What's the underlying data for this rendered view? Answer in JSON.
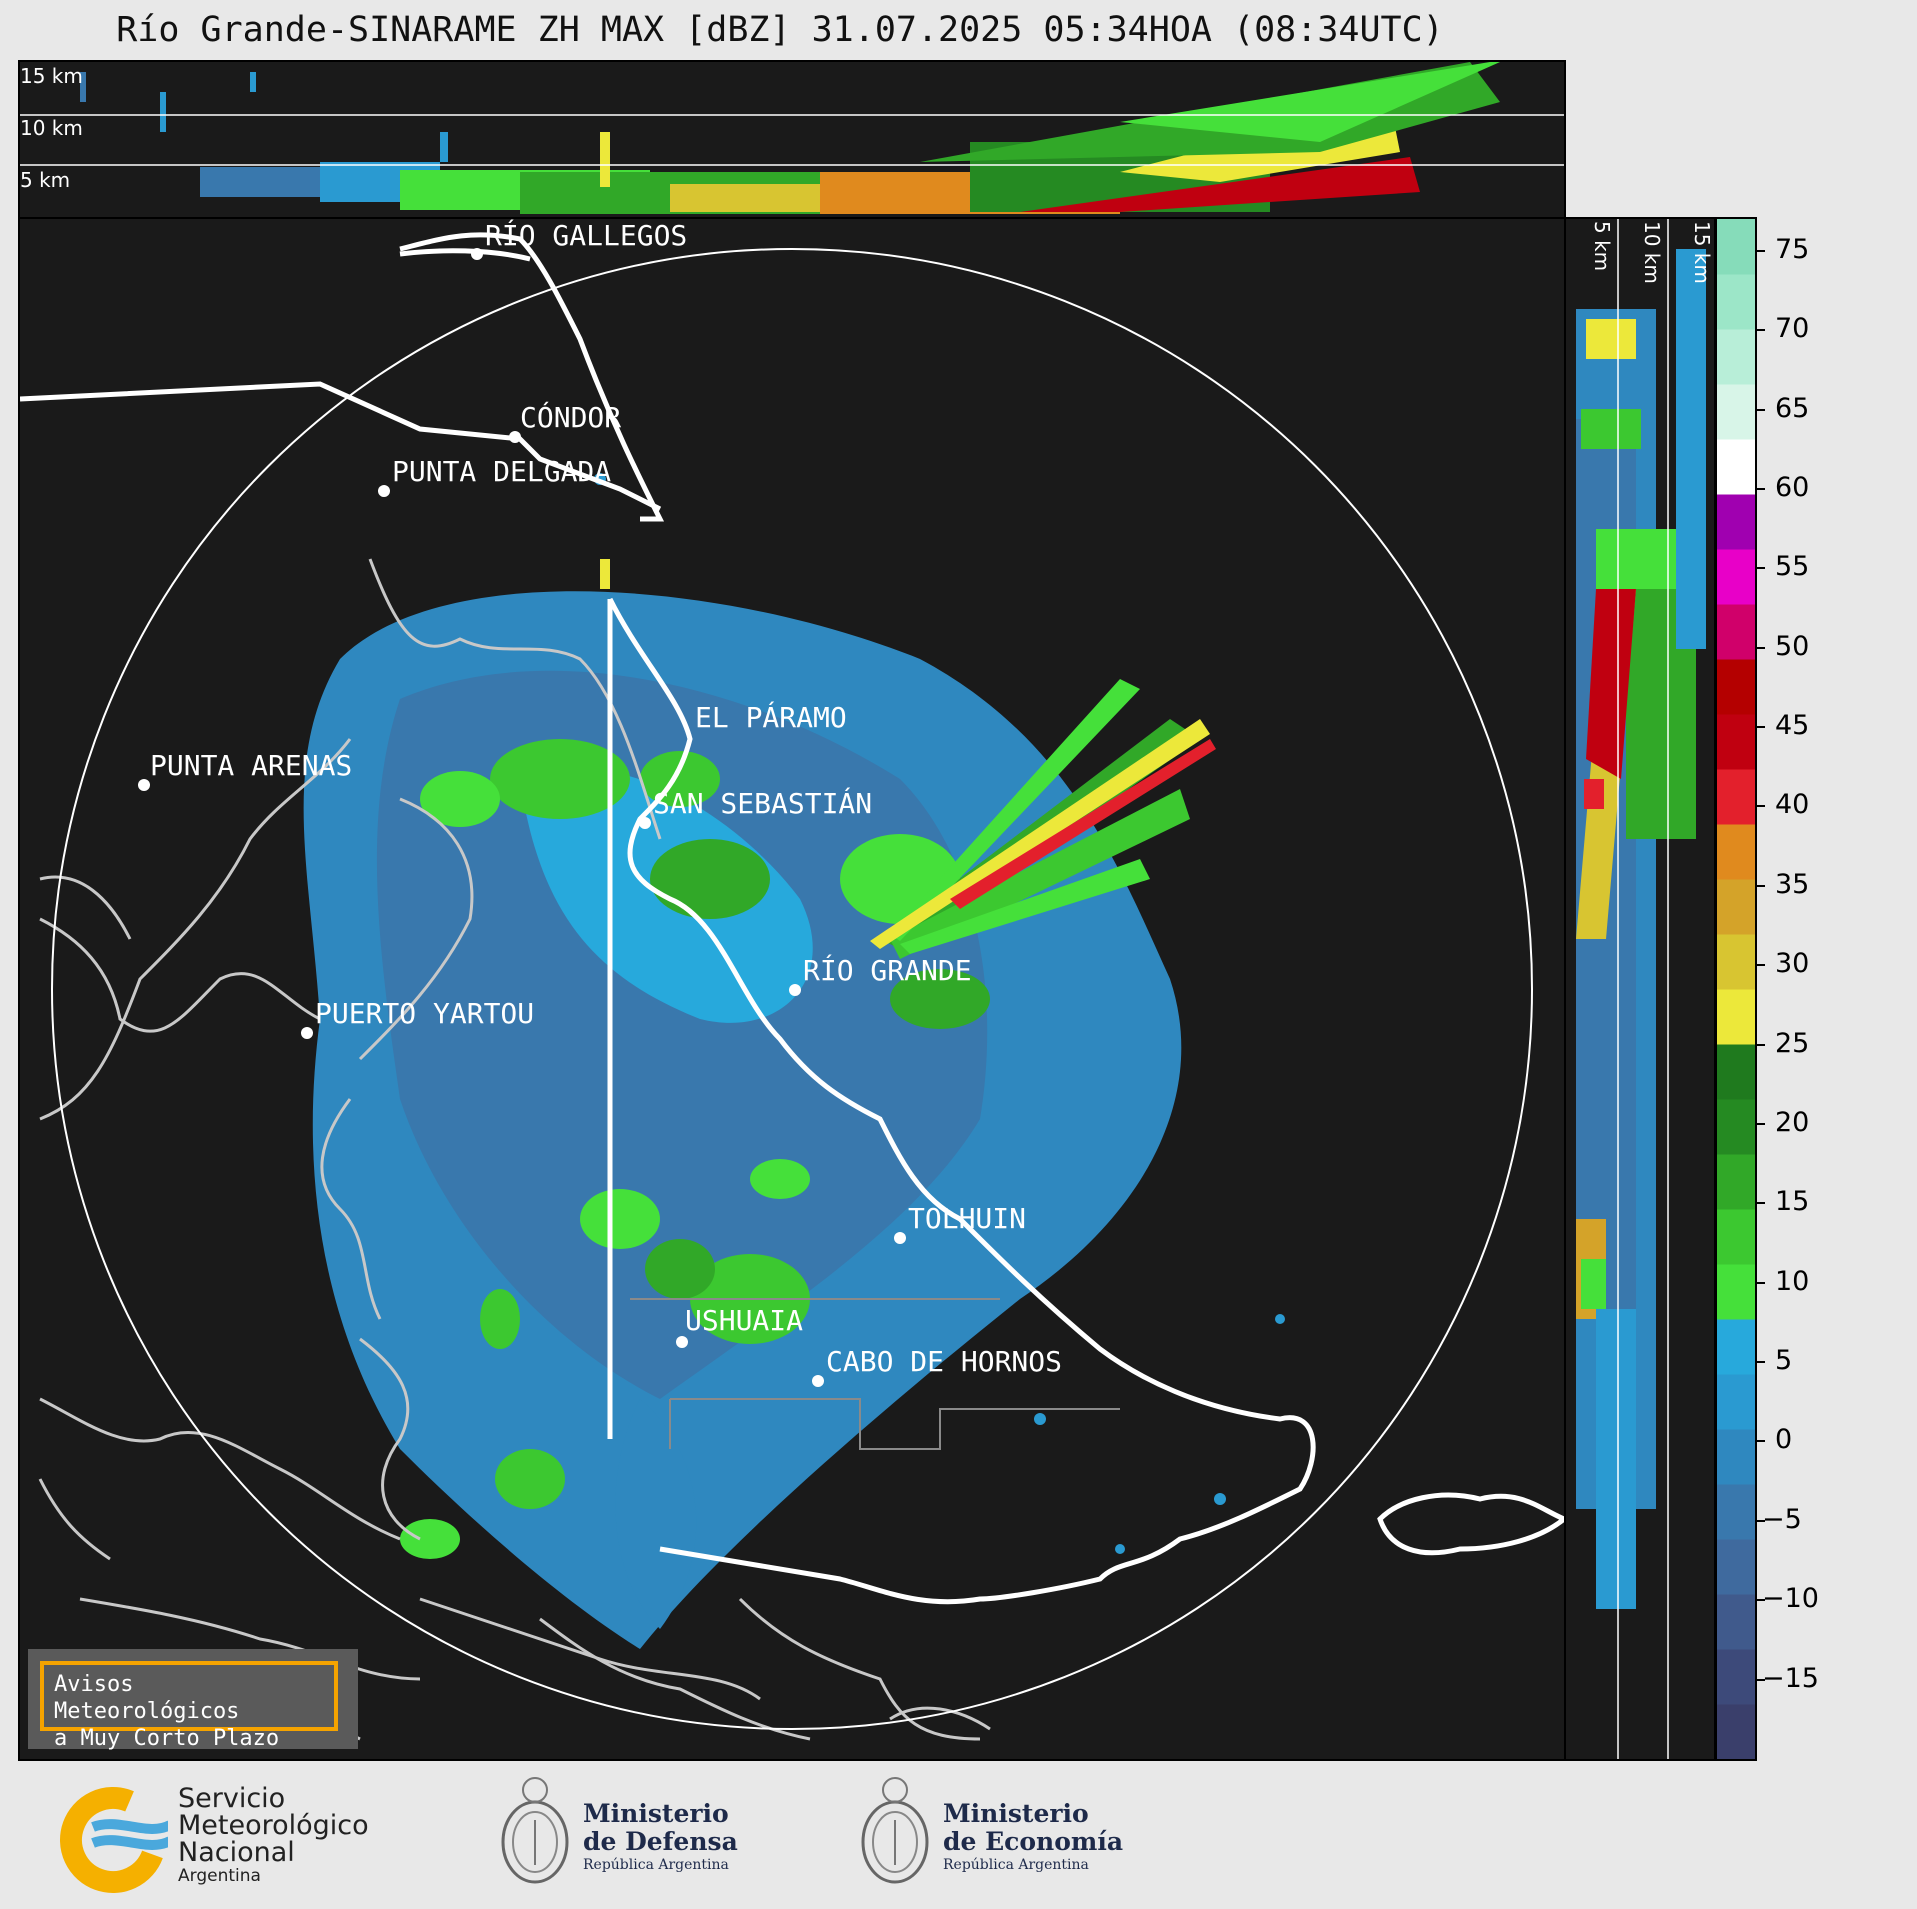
{
  "title": "Río Grande-SINARAME ZH MAX [dBZ] 31.07.2025 05:34HOA (08:34UTC)",
  "top_panel": {
    "altitude_labels": [
      "15 km",
      "10 km",
      "5 km"
    ]
  },
  "side_panel": {
    "altitude_labels": [
      "5 km",
      "10 km",
      "15 km"
    ]
  },
  "cities": [
    {
      "name": "RÍO GALLEGOS"
    },
    {
      "name": "CÓNDOR"
    },
    {
      "name": "PUNTA DELGADA"
    },
    {
      "name": "EL PÁRAMO"
    },
    {
      "name": "PUNTA ARENAS"
    },
    {
      "name": "SAN SEBASTIÁN"
    },
    {
      "name": "RÍO GRANDE"
    },
    {
      "name": "PUERTO YARTOU"
    },
    {
      "name": "TOLHUIN"
    },
    {
      "name": "USHUAIA"
    },
    {
      "name": "CABO DE HORNOS"
    }
  ],
  "colorbar": {
    "unit": "dBZ",
    "ticks": [
      "75",
      "70",
      "65",
      "60",
      "55",
      "50",
      "45",
      "40",
      "35",
      "30",
      "25",
      "20",
      "15",
      "10",
      "5",
      "0",
      "−5",
      "−10",
      "−15"
    ],
    "range": [
      -20,
      77
    ],
    "colors": [
      "#3a3f6b",
      "#3d4a7a",
      "#405a8c",
      "#3f6a9e",
      "#3978ad",
      "#2f88bf",
      "#2a9ad1",
      "#27a9dc",
      "#45e03a",
      "#3cc830",
      "#31a828",
      "#258a22",
      "#1f7a1e",
      "#ece83a",
      "#d8c531",
      "#d4a329",
      "#e08a1e",
      "#e3202c",
      "#c00010",
      "#b40000",
      "#d0006a",
      "#e800c8",
      "#a000b0",
      "#ffffff",
      "#d8f5e8",
      "#b8eed8",
      "#9ce6c8",
      "#86dcba"
    ]
  },
  "notice": {
    "line1": "Avisos Meteorológicos",
    "line2": "a Muy Corto Plazo"
  },
  "logos": {
    "smn": {
      "line1": "Servicio",
      "line2": "Meteorológico",
      "line3": "Nacional",
      "line4": "Argentina"
    },
    "defensa": {
      "line1": "Ministerio",
      "line2": "de Defensa",
      "line3": "República Argentina"
    },
    "economia": {
      "line1": "Ministerio",
      "line2": "de Economía",
      "line3": "República Argentina"
    }
  }
}
